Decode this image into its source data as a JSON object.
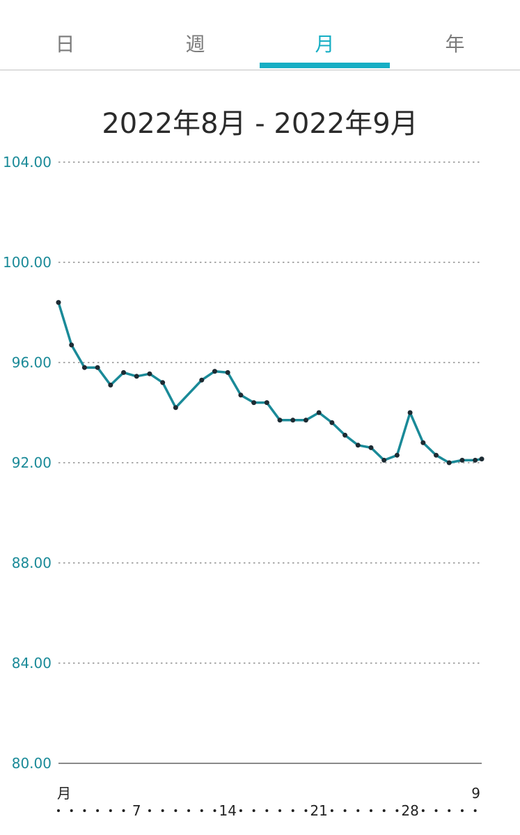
{
  "tabs": [
    {
      "label": "日",
      "active": false
    },
    {
      "label": "週",
      "active": false
    },
    {
      "label": "月",
      "active": true
    },
    {
      "label": "年",
      "active": false
    }
  ],
  "period_title": "2022年8月 - 2022年9月",
  "colors": {
    "accent": "#16aec4",
    "line": "#1a8a98",
    "point": "#1d2b33",
    "axis_label": "#1a8a98"
  },
  "chart_data": {
    "type": "line",
    "title": "2022年8月 - 2022年9月",
    "xlabel": "",
    "ylabel": "",
    "ylim": [
      80,
      104
    ],
    "y_ticks": [
      "104.00",
      "100.00",
      "96.00",
      "92.00",
      "88.00",
      "84.00",
      "80.00"
    ],
    "grid": true,
    "x_start_label": "月",
    "x_end_label": "9",
    "x_tick_labels": [
      {
        "day": 7,
        "label": "7"
      },
      {
        "day": 14,
        "label": "14"
      },
      {
        "day": 21,
        "label": "21"
      },
      {
        "day": 28,
        "label": "28"
      }
    ],
    "series": [
      {
        "x": [
          1,
          2,
          3,
          4,
          5,
          6,
          7,
          8,
          9,
          10,
          12,
          13,
          14,
          15,
          16,
          17,
          18,
          19,
          20,
          21,
          22,
          23,
          24,
          25,
          26,
          27,
          28,
          29,
          30,
          31,
          32,
          33,
          33.5
        ],
        "values": [
          98.4,
          96.7,
          95.8,
          95.8,
          95.1,
          95.6,
          95.45,
          95.55,
          95.2,
          94.2,
          95.3,
          95.65,
          95.6,
          94.7,
          94.4,
          94.4,
          93.7,
          93.7,
          93.7,
          94.0,
          93.6,
          93.1,
          92.7,
          92.6,
          92.1,
          92.3,
          94.0,
          92.8,
          92.3,
          92.0,
          92.1,
          92.1,
          92.15
        ]
      }
    ]
  }
}
